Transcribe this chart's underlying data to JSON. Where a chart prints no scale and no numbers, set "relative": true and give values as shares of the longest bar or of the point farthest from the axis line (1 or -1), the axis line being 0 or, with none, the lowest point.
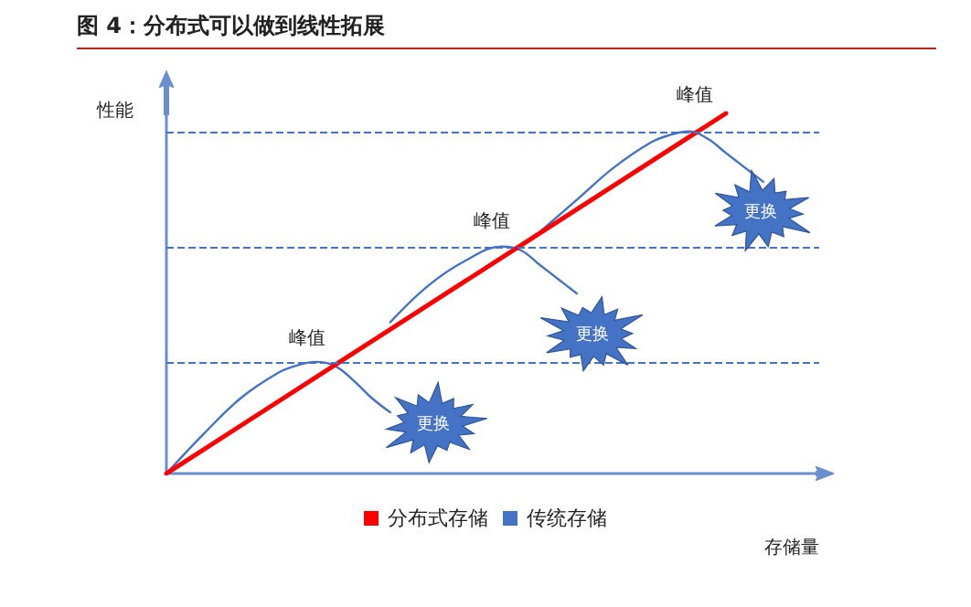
{
  "chart_data": {
    "type": "line",
    "title": "图 4：分布式可以做到线性拓展",
    "xlabel": "存储量",
    "ylabel": "性能",
    "relative": true,
    "legend": "bottom",
    "marker": "none",
    "categories": [
      null,
      null,
      null,
      null,
      null,
      null,
      null,
      null,
      null,
      null,
      null,
      null,
      null,
      null,
      null,
      null,
      null,
      null,
      null,
      null,
      null,
      null,
      null,
      null,
      null,
      null,
      null,
      null,
      null,
      null,
      null,
      null,
      null,
      null,
      null,
      null
    ],
    "series": [
      {
        "name": "分布式存储",
        "color": "#ff0000",
        "values": [
          0,
          null,
          null,
          null,
          null,
          null,
          null,
          null,
          null,
          null,
          null,
          null,
          null,
          null,
          null,
          null,
          null,
          null,
          null,
          null,
          null,
          null,
          null,
          null,
          null,
          null,
          null,
          null,
          null,
          null,
          1,
          null,
          null,
          null,
          null,
          null
        ]
      },
      {
        "name": "传统存储",
        "color": "#4472c4",
        "values": [
          0,
          null,
          0.11,
          null,
          0.21,
          null,
          0.28,
          0.3,
          0.31,
          0.3,
          0.26,
          0.21,
          0.17,
          null,
          null,
          null,
          null,
          null,
          null,
          null,
          null,
          null,
          null,
          null,
          null,
          null,
          null,
          null,
          null,
          null,
          null,
          null,
          null,
          null,
          null,
          null
        ]
      },
      {
        "color": "#4472c4",
        "values": [
          null,
          null,
          null,
          null,
          null,
          null,
          null,
          null,
          null,
          null,
          null,
          null,
          0.42,
          null,
          0.52,
          null,
          0.59,
          null,
          0.63,
          0.62,
          0.58,
          0.54,
          0.5,
          null,
          null,
          null,
          null,
          null,
          null,
          null,
          null,
          null,
          null,
          null,
          null,
          null
        ]
      },
      {
        "color": "#4472c4",
        "values": [
          null,
          null,
          null,
          null,
          null,
          null,
          null,
          null,
          null,
          null,
          null,
          null,
          null,
          null,
          null,
          null,
          null,
          null,
          null,
          null,
          0.67,
          null,
          0.76,
          null,
          0.85,
          null,
          0.92,
          0.94,
          0.95,
          0.93,
          0.89,
          0.85,
          0.81,
          null,
          null,
          null
        ]
      }
    ],
    "ref_lines": [
      {
        "axis": "y",
        "value": 0.31,
        "color": "#4472c4",
        "line_style": "dashed"
      },
      {
        "axis": "y",
        "value": 0.63,
        "color": "#4472c4",
        "line_style": "dashed"
      },
      {
        "axis": "y",
        "value": 0.95,
        "color": "#4472c4",
        "line_style": "dashed"
      }
    ],
    "annotations": [
      "峰值",
      "峰值",
      "峰值",
      "更换",
      "更换",
      "更换"
    ]
  }
}
